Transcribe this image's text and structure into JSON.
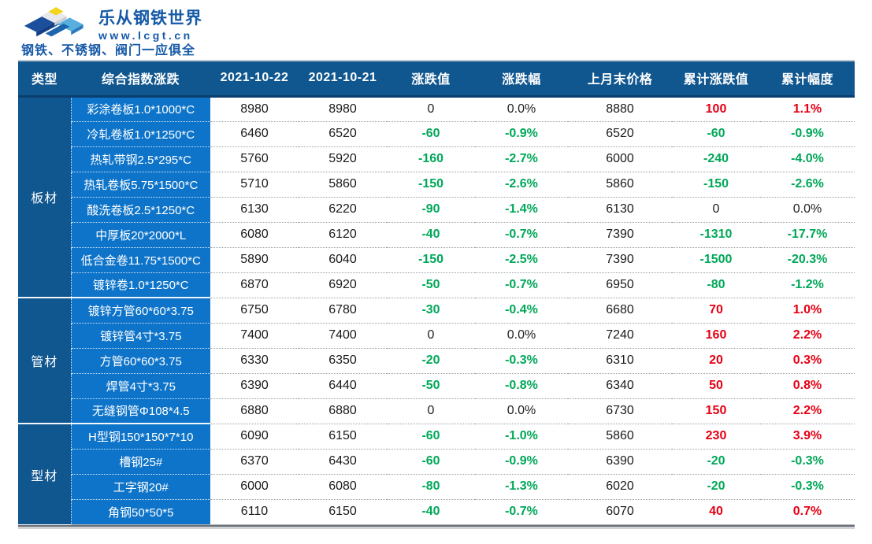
{
  "brand": {
    "name": "乐从钢铁世界",
    "website": "www.lcgt.cn",
    "tagline": "钢铁、不锈钢、阀门一应俱全"
  },
  "colors": {
    "header_bg": "#10568f",
    "type_col_bg": "#10568f",
    "product_col_bg": "#0e74c9",
    "positive_red": "#e60014",
    "negative_green": "#00a859",
    "neutral_black": "#1f1f1f",
    "brand_blue": "#1559a7"
  },
  "table": {
    "columns": [
      "类型",
      "综合指数涨跌",
      "2021-10-22",
      "2021-10-21",
      "涨跌值",
      "涨跌幅",
      "上月末价格",
      "累计涨跌值",
      "累计幅度"
    ],
    "groups": [
      {
        "type": "板材",
        "rows": [
          {
            "product": "彩涂卷板1.0*1000*C",
            "price_1022": "8980",
            "price_1021": "8980",
            "change": "0",
            "change_pct": "0.0%",
            "last_month_price": "8880",
            "cum_change": "100",
            "cum_pct": "1.1%"
          },
          {
            "product": "冷轧卷板1.0*1250*C",
            "price_1022": "6460",
            "price_1021": "6520",
            "change": "-60",
            "change_pct": "-0.9%",
            "last_month_price": "6520",
            "cum_change": "-60",
            "cum_pct": "-0.9%"
          },
          {
            "product": "热轧带钢2.5*295*C",
            "price_1022": "5760",
            "price_1021": "5920",
            "change": "-160",
            "change_pct": "-2.7%",
            "last_month_price": "6000",
            "cum_change": "-240",
            "cum_pct": "-4.0%"
          },
          {
            "product": "热轧卷板5.75*1500*C",
            "price_1022": "5710",
            "price_1021": "5860",
            "change": "-150",
            "change_pct": "-2.6%",
            "last_month_price": "5860",
            "cum_change": "-150",
            "cum_pct": "-2.6%"
          },
          {
            "product": "酸洗卷板2.5*1250*C",
            "price_1022": "6130",
            "price_1021": "6220",
            "change": "-90",
            "change_pct": "-1.4%",
            "last_month_price": "6130",
            "cum_change": "0",
            "cum_pct": "0.0%"
          },
          {
            "product": "中厚板20*2000*L",
            "price_1022": "6080",
            "price_1021": "6120",
            "change": "-40",
            "change_pct": "-0.7%",
            "last_month_price": "7390",
            "cum_change": "-1310",
            "cum_pct": "-17.7%"
          },
          {
            "product": "低合金卷11.75*1500*C",
            "price_1022": "5890",
            "price_1021": "6040",
            "change": "-150",
            "change_pct": "-2.5%",
            "last_month_price": "7390",
            "cum_change": "-1500",
            "cum_pct": "-20.3%"
          },
          {
            "product": "镀锌卷1.0*1250*C",
            "price_1022": "6870",
            "price_1021": "6920",
            "change": "-50",
            "change_pct": "-0.7%",
            "last_month_price": "6950",
            "cum_change": "-80",
            "cum_pct": "-1.2%"
          }
        ]
      },
      {
        "type": "管材",
        "rows": [
          {
            "product": "镀锌方管60*60*3.75",
            "price_1022": "6750",
            "price_1021": "6780",
            "change": "-30",
            "change_pct": "-0.4%",
            "last_month_price": "6680",
            "cum_change": "70",
            "cum_pct": "1.0%"
          },
          {
            "product": "镀锌管4寸*3.75",
            "price_1022": "7400",
            "price_1021": "7400",
            "change": "0",
            "change_pct": "0.0%",
            "last_month_price": "7240",
            "cum_change": "160",
            "cum_pct": "2.2%"
          },
          {
            "product": "方管60*60*3.75",
            "price_1022": "6330",
            "price_1021": "6350",
            "change": "-20",
            "change_pct": "-0.3%",
            "last_month_price": "6310",
            "cum_change": "20",
            "cum_pct": "0.3%"
          },
          {
            "product": "焊管4寸*3.75",
            "price_1022": "6390",
            "price_1021": "6440",
            "change": "-50",
            "change_pct": "-0.8%",
            "last_month_price": "6340",
            "cum_change": "50",
            "cum_pct": "0.8%"
          },
          {
            "product": "无缝钢管Φ108*4.5",
            "price_1022": "6880",
            "price_1021": "6880",
            "change": "0",
            "change_pct": "0.0%",
            "last_month_price": "6730",
            "cum_change": "150",
            "cum_pct": "2.2%"
          }
        ]
      },
      {
        "type": "型材",
        "rows": [
          {
            "product": "H型钢150*150*7*10",
            "price_1022": "6090",
            "price_1021": "6150",
            "change": "-60",
            "change_pct": "-1.0%",
            "last_month_price": "5860",
            "cum_change": "230",
            "cum_pct": "3.9%"
          },
          {
            "product": "槽钢25#",
            "price_1022": "6370",
            "price_1021": "6430",
            "change": "-60",
            "change_pct": "-0.9%",
            "last_month_price": "6390",
            "cum_change": "-20",
            "cum_pct": "-0.3%"
          },
          {
            "product": "工字钢20#",
            "price_1022": "6000",
            "price_1021": "6080",
            "change": "-80",
            "change_pct": "-1.3%",
            "last_month_price": "6020",
            "cum_change": "-20",
            "cum_pct": "-0.3%"
          },
          {
            "product": "角钢50*50*5",
            "price_1022": "6110",
            "price_1021": "6150",
            "change": "-40",
            "change_pct": "-0.7%",
            "last_month_price": "6070",
            "cum_change": "40",
            "cum_pct": "0.7%"
          }
        ]
      }
    ]
  }
}
